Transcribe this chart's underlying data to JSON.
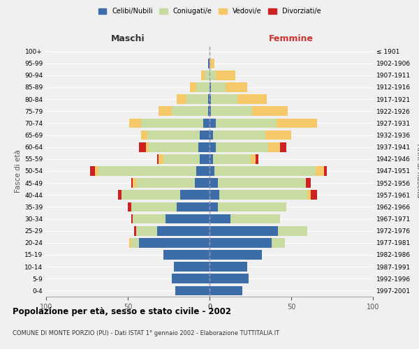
{
  "age_groups": [
    "0-4",
    "5-9",
    "10-14",
    "15-19",
    "20-24",
    "25-29",
    "30-34",
    "35-39",
    "40-44",
    "45-49",
    "50-54",
    "55-59",
    "60-64",
    "65-69",
    "70-74",
    "75-79",
    "80-84",
    "85-89",
    "90-94",
    "95-99",
    "100+"
  ],
  "birth_years": [
    "1997-2001",
    "1992-1996",
    "1987-1991",
    "1982-1986",
    "1977-1981",
    "1972-1976",
    "1967-1971",
    "1962-1966",
    "1957-1961",
    "1952-1956",
    "1947-1951",
    "1942-1946",
    "1937-1941",
    "1932-1936",
    "1927-1931",
    "1922-1926",
    "1917-1921",
    "1912-1916",
    "1907-1911",
    "1902-1906",
    "≤ 1901"
  ],
  "male": {
    "celibi": [
      21,
      23,
      22,
      28,
      43,
      32,
      27,
      20,
      18,
      9,
      8,
      6,
      7,
      6,
      4,
      1,
      1,
      0,
      0,
      1,
      0
    ],
    "coniugati": [
      0,
      0,
      0,
      0,
      5,
      13,
      20,
      28,
      36,
      36,
      60,
      22,
      30,
      32,
      38,
      22,
      13,
      8,
      3,
      0,
      0
    ],
    "vedovi": [
      0,
      0,
      0,
      0,
      1,
      0,
      0,
      0,
      0,
      2,
      2,
      3,
      2,
      4,
      7,
      8,
      6,
      4,
      2,
      0,
      0
    ],
    "divorziati": [
      0,
      0,
      0,
      0,
      0,
      1,
      1,
      2,
      2,
      1,
      3,
      1,
      4,
      0,
      0,
      0,
      0,
      0,
      0,
      0,
      0
    ]
  },
  "female": {
    "nubili": [
      20,
      24,
      23,
      32,
      38,
      42,
      13,
      5,
      6,
      5,
      3,
      2,
      4,
      2,
      4,
      1,
      1,
      1,
      0,
      0,
      0
    ],
    "coniugate": [
      0,
      0,
      0,
      0,
      8,
      18,
      30,
      42,
      54,
      54,
      62,
      23,
      32,
      32,
      37,
      25,
      16,
      9,
      4,
      0,
      0
    ],
    "vedove": [
      0,
      0,
      0,
      0,
      0,
      0,
      0,
      0,
      2,
      0,
      5,
      3,
      7,
      16,
      25,
      22,
      18,
      13,
      12,
      3,
      0
    ],
    "divorziate": [
      0,
      0,
      0,
      0,
      0,
      0,
      0,
      0,
      4,
      3,
      2,
      2,
      4,
      0,
      0,
      0,
      0,
      0,
      0,
      0,
      0
    ]
  },
  "colors": {
    "celibi": "#3d6da8",
    "coniugati": "#c8dba0",
    "vedovi": "#f5c86a",
    "divorziati": "#cc2222"
  },
  "title": "Popolazione per età, sesso e stato civile - 2002",
  "subtitle": "COMUNE DI MONTE PORZIO (PU) - Dati ISTAT 1° gennaio 2002 - Elaborazione TUTTITALIA.IT",
  "label_maschi": "Maschi",
  "label_femmine": "Femmine",
  "ylabel_left": "Fasce di età",
  "ylabel_right": "Anni di nascita",
  "xlim": 100,
  "bg_color": "#f0f0f0",
  "legend_labels": [
    "Celibi/Nubili",
    "Coniugati/e",
    "Vedovi/e",
    "Divorziati/e"
  ]
}
